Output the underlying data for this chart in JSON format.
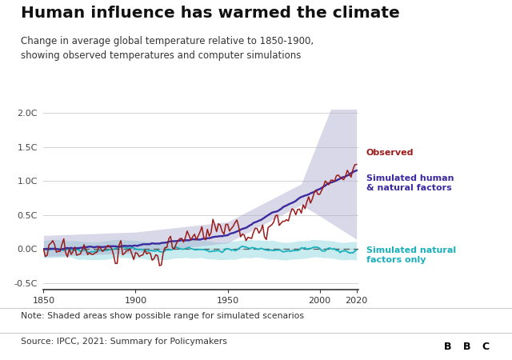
{
  "title": "Human influence has warmed the climate",
  "subtitle": "Change in average global temperature relative to 1850-1900,\nshowing observed temperatures and computer simulations",
  "note": "Note: Shaded areas show possible range for simulated scenarios",
  "source": "Source: IPCC, 2021: Summary for Policymakers",
  "bbc_logo": "BBC",
  "year_start": 1850,
  "year_end": 2020,
  "ylim": [
    -0.6,
    2.05
  ],
  "yticks": [
    -0.5,
    0.0,
    0.5,
    1.0,
    1.5,
    2.0
  ],
  "ytick_labels": [
    "-0.5C",
    "0.0C",
    "0.5C",
    "1.0C",
    "1.5C",
    "2.0C"
  ],
  "xticks": [
    1850,
    1900,
    1950,
    2000,
    2020
  ],
  "colors": {
    "observed": "#9B1B1B",
    "simulated_human": "#3B2A9E",
    "simulated_natural": "#1AAFBB",
    "shade_human": "#AAAACC",
    "shade_natural": "#90D8E0",
    "dashed_zero": "#555555",
    "background": "#FFFFFF",
    "footer_line": "#CCCCCC"
  },
  "legend": {
    "observed": "Observed",
    "simulated_human": "Simulated human\n& natural factors",
    "simulated_natural": "Simulated natural\nfactors only"
  }
}
